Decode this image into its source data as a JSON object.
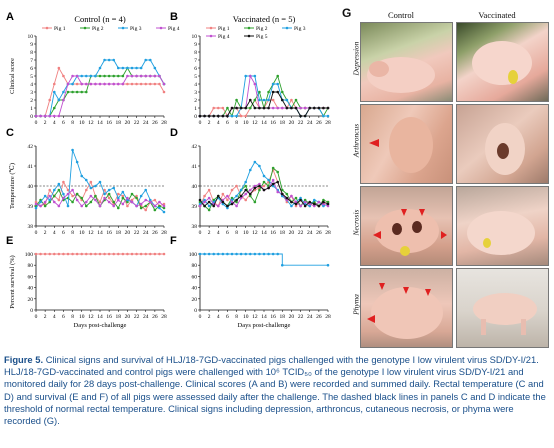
{
  "panels": {
    "A": {
      "letter": "A",
      "title": "Control (n = 4)",
      "ylabel": "Clinical score"
    },
    "B": {
      "letter": "B",
      "title": "Vaccinated (n = 5)",
      "ylabel": ""
    },
    "C": {
      "letter": "C",
      "title": "",
      "ylabel": "Temperature (℃)"
    },
    "D": {
      "letter": "D",
      "title": "",
      "ylabel": ""
    },
    "E": {
      "letter": "E",
      "title": "",
      "ylabel": "Percent survival (%)",
      "xlabel": "Days post-challenge"
    },
    "F": {
      "letter": "F",
      "title": "",
      "ylabel": "",
      "xlabel": "Days post-challenge"
    }
  },
  "chart_data": [
    {
      "panel": "A",
      "type": "line",
      "title": "Control (n = 4)",
      "ylabel": "Clinical score",
      "xlabel": "",
      "x": [
        0,
        1,
        2,
        3,
        4,
        5,
        6,
        7,
        8,
        9,
        10,
        11,
        12,
        13,
        14,
        15,
        16,
        17,
        18,
        19,
        20,
        21,
        22,
        23,
        24,
        25,
        26,
        27,
        28
      ],
      "ylim": [
        0,
        10
      ],
      "yticks": [
        0,
        1,
        2,
        3,
        4,
        5,
        6,
        7,
        8,
        9,
        10
      ],
      "xticks": [
        0,
        2,
        4,
        6,
        8,
        10,
        12,
        14,
        16,
        18,
        20,
        22,
        24,
        26,
        28
      ],
      "legend": "top",
      "series": [
        {
          "name": "Pig 1",
          "color": "#f08080",
          "marker": "circle",
          "values": [
            0,
            0,
            0,
            2,
            4,
            6,
            5,
            4,
            4,
            4,
            4,
            4,
            4,
            4,
            4,
            4,
            4,
            4,
            4,
            4,
            4,
            4,
            4,
            4,
            4,
            4,
            4,
            4,
            3
          ]
        },
        {
          "name": "Pig 2",
          "color": "#2ca02c",
          "marker": "circle",
          "values": [
            0,
            0,
            0,
            0,
            1,
            2,
            2,
            3,
            3,
            3,
            3,
            3,
            5,
            5,
            5,
            5,
            5,
            5,
            5,
            5,
            6,
            5,
            5,
            5,
            5,
            5,
            5,
            5,
            4
          ]
        },
        {
          "name": "Pig 3",
          "color": "#1f9fe0",
          "marker": "circle",
          "values": [
            0,
            0,
            0,
            0,
            3,
            2,
            3,
            4,
            4,
            5,
            5,
            5,
            5,
            5,
            6,
            7,
            7,
            7,
            6,
            6,
            6,
            6,
            6,
            6,
            7,
            7,
            6,
            5,
            4
          ]
        },
        {
          "name": "Pig 4",
          "color": "#c050d0",
          "marker": "circle",
          "values": [
            0,
            0,
            0,
            0,
            0,
            0,
            2,
            4,
            5,
            5,
            4,
            4,
            4,
            4,
            4,
            4,
            4,
            4,
            4,
            4,
            5,
            5,
            5,
            5,
            5,
            5,
            5,
            5,
            4
          ]
        }
      ]
    },
    {
      "panel": "B",
      "type": "line",
      "title": "Vaccinated (n = 5)",
      "ylabel": "",
      "xlabel": "",
      "x": [
        0,
        1,
        2,
        3,
        4,
        5,
        6,
        7,
        8,
        9,
        10,
        11,
        12,
        13,
        14,
        15,
        16,
        17,
        18,
        19,
        20,
        21,
        22,
        23,
        24,
        25,
        26,
        27,
        28
      ],
      "ylim": [
        0,
        10
      ],
      "yticks": [
        0,
        1,
        2,
        3,
        4,
        5,
        6,
        7,
        8,
        9,
        10
      ],
      "xticks": [
        0,
        2,
        4,
        6,
        8,
        10,
        12,
        14,
        16,
        18,
        20,
        22,
        24,
        26,
        28
      ],
      "legend": "top",
      "series": [
        {
          "name": "Pig 1",
          "color": "#f08080",
          "marker": "circle",
          "values": [
            0,
            0,
            0,
            1,
            1,
            1,
            0,
            1,
            1,
            0,
            0,
            1,
            2,
            1,
            1,
            2,
            2,
            1,
            1,
            1,
            2,
            1,
            1,
            1,
            1,
            1,
            1,
            1,
            1
          ]
        },
        {
          "name": "Pig 2",
          "color": "#2ca02c",
          "marker": "circle",
          "values": [
            0,
            0,
            0,
            0,
            0,
            0,
            1,
            0,
            2,
            1,
            1,
            1,
            2,
            3,
            1,
            3,
            4,
            5,
            3,
            2,
            1,
            2,
            1,
            1,
            1,
            1,
            1,
            0,
            1
          ]
        },
        {
          "name": "Pig 3",
          "color": "#1f9fe0",
          "marker": "circle",
          "values": [
            0,
            0,
            0,
            0,
            0,
            0,
            0,
            0,
            0,
            1,
            5,
            5,
            5,
            2,
            2,
            2,
            4,
            4,
            2,
            2,
            1,
            1,
            0,
            0,
            1,
            1,
            1,
            0,
            0
          ]
        },
        {
          "name": "Pig 4",
          "color": "#c050d0",
          "marker": "circle",
          "values": [
            0,
            0,
            0,
            0,
            0,
            0,
            0,
            1,
            1,
            1,
            1,
            5,
            4,
            1,
            1,
            1,
            1,
            1,
            1,
            1,
            1,
            1,
            1,
            1,
            1,
            1,
            1,
            1,
            1
          ]
        },
        {
          "name": "Pig 5",
          "color": "#111111",
          "marker": "circle",
          "values": [
            0,
            0,
            0,
            0,
            0,
            0,
            0,
            1,
            1,
            1,
            1,
            2,
            1,
            1,
            1,
            1,
            3,
            3,
            2,
            1,
            1,
            1,
            0,
            0,
            1,
            1,
            1,
            1,
            1
          ]
        }
      ]
    },
    {
      "panel": "C",
      "type": "line",
      "title": "",
      "ylabel": "Temperature (℃)",
      "xlabel": "",
      "x": [
        0,
        1,
        2,
        3,
        4,
        5,
        6,
        7,
        8,
        9,
        10,
        11,
        12,
        13,
        14,
        15,
        16,
        17,
        18,
        19,
        20,
        21,
        22,
        23,
        24,
        25,
        26,
        27,
        28
      ],
      "ylim": [
        38,
        42
      ],
      "yticks": [
        38,
        39,
        40,
        41,
        42
      ],
      "xticks": [
        0,
        2,
        4,
        6,
        8,
        10,
        12,
        14,
        16,
        18,
        20,
        22,
        24,
        26,
        28
      ],
      "reference_line": 40,
      "series": [
        {
          "name": "Pig 1",
          "color": "#f08080",
          "marker": "circle",
          "values": [
            39.2,
            39.0,
            39.1,
            39.8,
            39.5,
            39.3,
            40.2,
            39.8,
            39.5,
            39.6,
            39.3,
            39.8,
            40.2,
            39.5,
            39.2,
            39.8,
            39.4,
            39.1,
            39.6,
            39.5,
            39.0,
            39.3,
            39.5,
            39.0,
            38.8,
            39.2,
            39.3,
            39.0,
            39.1
          ]
        },
        {
          "name": "Pig 2",
          "color": "#2ca02c",
          "marker": "circle",
          "values": [
            39.0,
            39.3,
            39.0,
            39.2,
            39.5,
            39.8,
            39.3,
            39.4,
            39.2,
            39.6,
            39.4,
            39.0,
            39.2,
            39.5,
            39.0,
            39.3,
            39.6,
            39.2,
            38.9,
            39.4,
            39.2,
            39.6,
            39.4,
            38.9,
            39.0,
            39.2,
            38.8,
            39.0,
            38.9
          ]
        },
        {
          "name": "Pig 3",
          "color": "#1f9fe0",
          "marker": "circle",
          "values": [
            38.9,
            39.2,
            39.5,
            39.3,
            39.8,
            40.1,
            39.6,
            39.0,
            41.8,
            41.2,
            40.5,
            40.3,
            39.9,
            40.0,
            40.2,
            39.6,
            39.8,
            39.9,
            39.4,
            39.7,
            39.3,
            39.2,
            39.0,
            39.5,
            39.8,
            39.3,
            39.0,
            38.9,
            38.7
          ]
        },
        {
          "name": "Pig 4",
          "color": "#c050d0",
          "marker": "circle",
          "values": [
            39.1,
            39.0,
            39.2,
            39.5,
            39.2,
            39.0,
            39.4,
            39.6,
            39.8,
            39.3,
            39.0,
            39.2,
            39.5,
            39.3,
            39.0,
            39.4,
            39.2,
            39.0,
            39.3,
            39.1,
            39.4,
            39.2,
            39.0,
            39.1,
            39.3,
            39.2,
            39.0,
            39.2,
            39.0
          ]
        }
      ]
    },
    {
      "panel": "D",
      "type": "line",
      "title": "",
      "ylabel": "",
      "xlabel": "",
      "x": [
        0,
        1,
        2,
        3,
        4,
        5,
        6,
        7,
        8,
        9,
        10,
        11,
        12,
        13,
        14,
        15,
        16,
        17,
        18,
        19,
        20,
        21,
        22,
        23,
        24,
        25,
        26,
        27,
        28
      ],
      "ylim": [
        38,
        42
      ],
      "yticks": [
        38,
        39,
        40,
        41,
        42
      ],
      "xticks": [
        0,
        2,
        4,
        6,
        8,
        10,
        12,
        14,
        16,
        18,
        20,
        22,
        24,
        26,
        28
      ],
      "reference_line": 40,
      "series": [
        {
          "name": "Pig 1",
          "color": "#f08080",
          "marker": "circle",
          "values": [
            39.0,
            39.5,
            39.8,
            39.2,
            39.0,
            39.6,
            39.3,
            39.8,
            40.0,
            39.5,
            39.3,
            39.6,
            39.8,
            39.9,
            40.0,
            40.2,
            40.8,
            40.2,
            39.6,
            39.2,
            39.5,
            39.0,
            39.3,
            39.1,
            39.0,
            39.2,
            39.0,
            39.1,
            39.2
          ]
        },
        {
          "name": "Pig 2",
          "color": "#2ca02c",
          "marker": "circle",
          "values": [
            39.2,
            39.0,
            38.8,
            39.3,
            39.5,
            39.2,
            39.0,
            39.4,
            39.2,
            39.8,
            40.0,
            39.5,
            39.2,
            39.8,
            40.2,
            40.0,
            40.9,
            40.7,
            39.8,
            39.6,
            39.2,
            39.4,
            39.0,
            39.3,
            39.1,
            39.2,
            39.0,
            39.3,
            39.2
          ]
        },
        {
          "name": "Pig 3",
          "color": "#1f9fe0",
          "marker": "circle",
          "values": [
            39.1,
            39.3,
            39.0,
            39.2,
            39.4,
            39.1,
            38.9,
            39.3,
            39.5,
            39.8,
            40.2,
            40.8,
            41.2,
            41.0,
            40.5,
            40.3,
            40.0,
            39.8,
            39.5,
            39.3,
            39.0,
            39.2,
            39.4,
            39.1,
            39.0,
            39.3,
            39.2,
            39.0,
            39.1
          ]
        },
        {
          "name": "Pig 4",
          "color": "#c050d0",
          "marker": "circle",
          "values": [
            39.0,
            39.2,
            39.4,
            39.1,
            39.0,
            39.3,
            39.5,
            39.2,
            39.0,
            39.4,
            39.6,
            39.8,
            40.0,
            40.1,
            39.8,
            39.9,
            40.3,
            39.7,
            39.6,
            39.3,
            39.5,
            39.2,
            39.0,
            39.2,
            39.1,
            39.0,
            39.2,
            39.1,
            39.0
          ]
        },
        {
          "name": "Pig 5",
          "color": "#111111",
          "marker": "circle",
          "values": [
            39.3,
            39.0,
            39.2,
            39.0,
            39.5,
            39.2,
            39.0,
            39.1,
            39.3,
            39.5,
            39.8,
            39.6,
            39.9,
            40.0,
            39.8,
            39.9,
            40.1,
            40.2,
            39.6,
            39.4,
            39.2,
            39.1,
            39.3,
            39.0,
            39.2,
            39.1,
            39.0,
            39.2,
            39.1
          ]
        }
      ]
    },
    {
      "panel": "E",
      "type": "line",
      "title": "",
      "ylabel": "Percent survival (%)",
      "xlabel": "Days post-challenge",
      "x": [
        0,
        1,
        2,
        3,
        4,
        5,
        6,
        7,
        8,
        9,
        10,
        11,
        12,
        13,
        14,
        15,
        16,
        17,
        18,
        19,
        20,
        21,
        22,
        23,
        24,
        25,
        26,
        27,
        28
      ],
      "ylim": [
        0,
        100
      ],
      "yticks": [
        0,
        20,
        40,
        60,
        80,
        100
      ],
      "xticks": [
        0,
        2,
        4,
        6,
        8,
        10,
        12,
        14,
        16,
        18,
        20,
        22,
        24,
        26,
        28
      ],
      "series": [
        {
          "name": "",
          "color": "#f08080",
          "marker": "circle",
          "values": [
            100,
            100,
            100,
            100,
            100,
            100,
            100,
            100,
            100,
            100,
            100,
            100,
            100,
            100,
            100,
            100,
            100,
            100,
            100,
            100,
            100,
            100,
            100,
            100,
            100,
            100,
            100,
            100,
            100
          ]
        }
      ]
    },
    {
      "panel": "F",
      "type": "line",
      "title": "",
      "ylabel": "",
      "xlabel": "Days post-challenge",
      "x": [
        0,
        1,
        2,
        3,
        4,
        5,
        6,
        7,
        8,
        9,
        10,
        11,
        12,
        13,
        14,
        15,
        16,
        17,
        18,
        19,
        20,
        21,
        22,
        23,
        24,
        25,
        26,
        27,
        28
      ],
      "ylim": [
        0,
        100
      ],
      "yticks": [
        0,
        20,
        40,
        60,
        80,
        100
      ],
      "xticks": [
        0,
        2,
        4,
        6,
        8,
        10,
        12,
        14,
        16,
        18,
        20,
        22,
        24,
        26,
        28
      ],
      "step": true,
      "marker_x": [
        0,
        1,
        2,
        3,
        4,
        5,
        6,
        7,
        8,
        9,
        10,
        11,
        12,
        13,
        14,
        15,
        16,
        17,
        18,
        28
      ],
      "series": [
        {
          "name": "",
          "color": "#1f9fe0",
          "marker": "circle",
          "values": [
            100,
            100,
            100,
            100,
            100,
            100,
            100,
            100,
            100,
            100,
            100,
            100,
            100,
            100,
            100,
            100,
            100,
            100,
            80,
            80,
            80,
            80,
            80,
            80,
            80,
            80,
            80,
            80,
            80
          ]
        }
      ]
    }
  ],
  "photos": {
    "letter": "G",
    "columns": [
      "Control",
      "Vaccinated"
    ],
    "rows": [
      "Depression",
      "Arthroncus",
      "Necrosis",
      "Phyma"
    ]
  },
  "caption": {
    "figure_label": "Figure 5.",
    "text": "Clinical signs and survival of HLJ/18-7GD-vaccinated pigs challenged with the genotype I low virulent virus SD/DY-I/21. HLJ/18-7GD-vaccinated and control pigs were challenged with 10⁶ TCID₅₀ of the genotype I low virulent virus SD/DY-I/21 and monitored daily for 28 days post-challenge. Clinical scores (A and B) were recorded and summed daily. Rectal temperature (C and D) and survival (E and F) of all pigs were assessed daily after the challenge. The dashed black lines in panels C and D indicate the threshold of normal rectal temperature. Clinical signs including depression, arthroncus, cutaneous necrosis, or phyma were recorded (G)."
  }
}
